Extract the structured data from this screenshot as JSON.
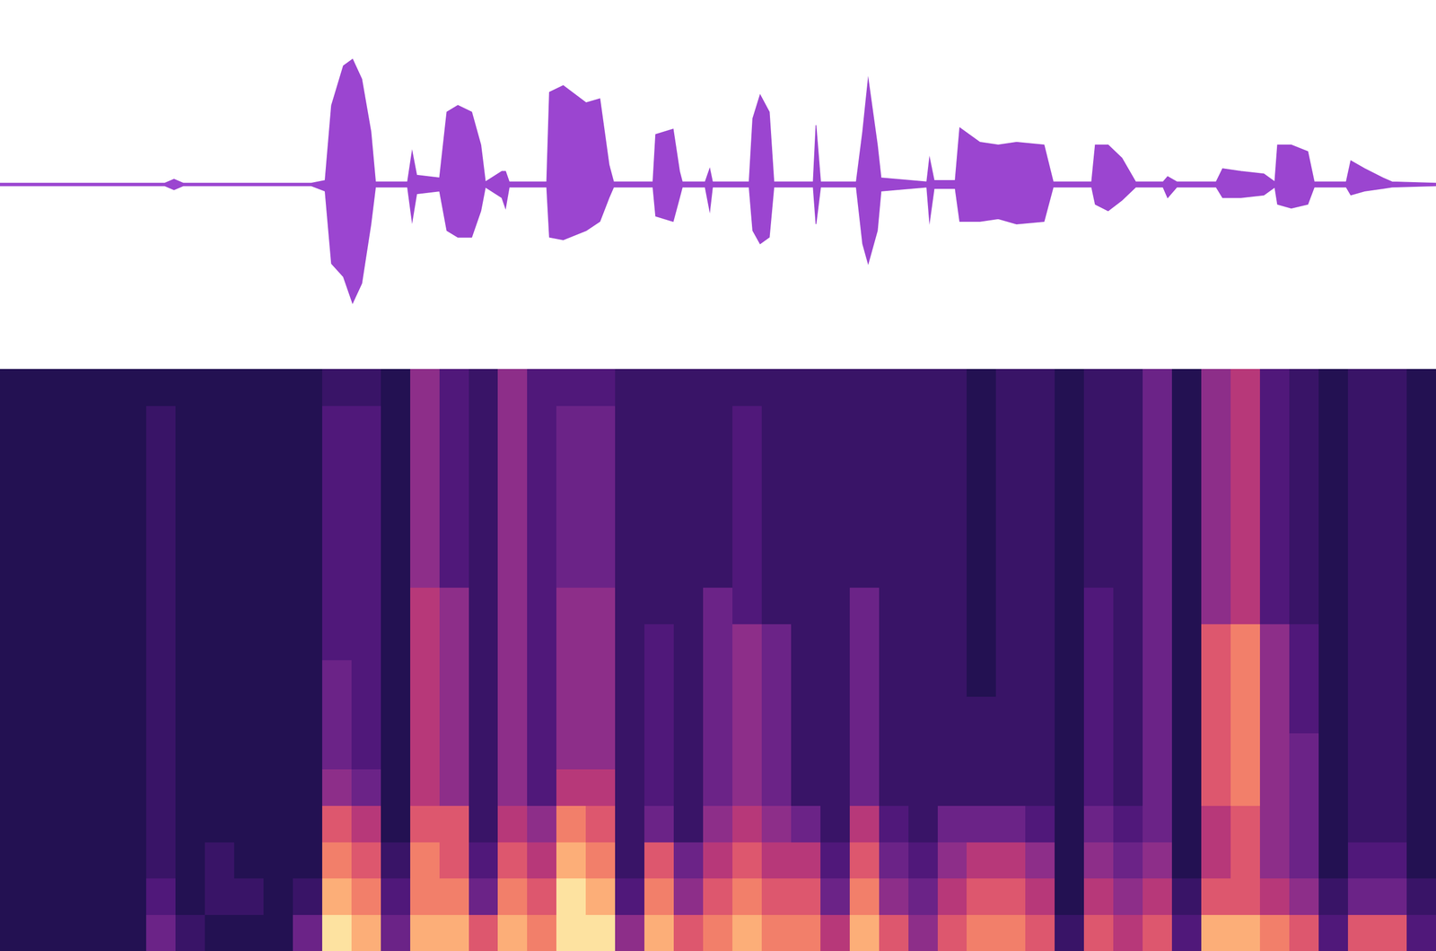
{
  "chart_data": [
    {
      "type": "area",
      "x": [
        0,
        180,
        190,
        200,
        340,
        355,
        362,
        375,
        385,
        395,
        405,
        410,
        445,
        450,
        455,
        480,
        488,
        500,
        515,
        525,
        530,
        548,
        552,
        556,
        597,
        600,
        615,
        640,
        655,
        665,
        670,
        713,
        716,
        735,
        742,
        745,
        770,
        775,
        778,
        818,
        822,
        830,
        840,
        845,
        888,
        891,
        896,
        935,
        942,
        948,
        958,
        962,
        1012,
        1015,
        1020,
        1043,
        1048,
        1070,
        1090,
        1110,
        1140,
        1150,
        1192,
        1196,
        1210,
        1225,
        1240,
        1270,
        1275,
        1285,
        1328,
        1335,
        1355,
        1380,
        1392,
        1395,
        1410,
        1428,
        1435,
        1470,
        1475,
        1490,
        1510,
        1520,
        1568
      ],
      "series": [
        {
          "color": "#9b45d0",
          "values": [
            0.01,
            0.01,
            0.04,
            0.01,
            0.01,
            0.03,
            0.6,
            0.9,
            0.95,
            0.8,
            0.4,
            0.02,
            0.02,
            0.25,
            0.07,
            0.05,
            0.55,
            0.6,
            0.55,
            0.3,
            0.02,
            0.1,
            0.1,
            0.02,
            0.02,
            0.7,
            0.75,
            0.62,
            0.65,
            0.15,
            0.02,
            0.02,
            0.38,
            0.42,
            0.1,
            0.02,
            0.02,
            0.12,
            0.02,
            0.02,
            0.5,
            0.68,
            0.55,
            0.02,
            0.02,
            0.45,
            0.02,
            0.02,
            0.4,
            0.8,
            0.3,
            0.05,
            0.02,
            0.2,
            0.03,
            0.03,
            0.43,
            0.32,
            0.3,
            0.32,
            0.3,
            0.02,
            0.02,
            0.3,
            0.3,
            0.2,
            0.02,
            0.02,
            0.06,
            0.02,
            0.02,
            0.12,
            0.1,
            0.08,
            0.02,
            0.3,
            0.3,
            0.25,
            0.02,
            0.02,
            0.18,
            0.12,
            0.05,
            0.02,
            0.01
          ]
        },
        {
          "color": "#9b45d0",
          "values": [
            -0.01,
            -0.01,
            -0.04,
            -0.01,
            -0.01,
            -0.05,
            -0.6,
            -0.7,
            -0.9,
            -0.75,
            -0.3,
            -0.02,
            -0.02,
            -0.28,
            -0.07,
            -0.05,
            -0.35,
            -0.4,
            -0.4,
            -0.2,
            -0.02,
            -0.1,
            -0.18,
            -0.02,
            -0.02,
            -0.4,
            -0.42,
            -0.35,
            -0.28,
            -0.1,
            -0.02,
            -0.02,
            -0.24,
            -0.28,
            -0.1,
            -0.02,
            -0.02,
            -0.2,
            -0.02,
            -0.02,
            -0.35,
            -0.45,
            -0.4,
            -0.02,
            -0.02,
            -0.3,
            -0.02,
            -0.02,
            -0.45,
            -0.6,
            -0.35,
            -0.05,
            -0.02,
            -0.28,
            -0.03,
            -0.03,
            -0.28,
            -0.28,
            -0.26,
            -0.3,
            -0.28,
            -0.02,
            -0.02,
            -0.15,
            -0.2,
            -0.12,
            -0.02,
            -0.02,
            -0.1,
            -0.02,
            -0.02,
            -0.1,
            -0.1,
            -0.08,
            -0.02,
            -0.15,
            -0.18,
            -0.15,
            -0.02,
            -0.02,
            -0.08,
            -0.05,
            -0.03,
            -0.02,
            -0.01
          ]
        }
      ],
      "xlim": [
        0,
        1568
      ],
      "ylim": [
        -1.4,
        1.4
      ],
      "tick_labels": false,
      "grid": false
    },
    {
      "type": "heatmap",
      "xlim": [
        0,
        1568
      ],
      "ylim": [
        0,
        8
      ],
      "color_range": [
        0,
        9
      ],
      "tick_labels": false,
      "grid": false,
      "cells": [
        [
          0,
          0,
          0,
          0,
          0,
          0,
          0,
          0,
          0,
          0,
          0,
          0,
          0,
          0,
          0,
          0
        ],
        [
          0,
          0,
          0,
          0,
          0,
          0,
          0,
          0,
          0,
          0,
          0,
          0,
          0,
          0,
          0,
          0
        ],
        [
          0,
          0,
          0,
          0,
          0,
          0,
          0,
          0,
          0,
          0,
          0,
          0,
          0,
          0,
          0,
          0
        ],
        [
          0,
          0,
          0,
          0,
          0,
          0,
          0,
          0,
          0,
          0,
          0,
          0,
          0,
          0,
          0,
          0
        ],
        [
          0,
          0,
          0,
          0,
          0,
          0,
          0,
          0,
          0,
          0,
          0,
          0,
          0,
          0,
          0,
          0
        ],
        [
          3,
          2,
          1,
          1,
          1,
          1,
          1,
          1,
          1,
          1,
          1,
          1,
          1,
          1,
          1,
          0
        ],
        [
          1,
          0,
          0,
          0,
          0,
          0,
          0,
          0,
          0,
          0,
          0,
          0,
          0,
          0,
          0,
          0
        ],
        [
          0,
          1,
          1,
          0,
          0,
          0,
          0,
          0,
          0,
          0,
          0,
          0,
          0,
          0,
          0,
          0
        ],
        [
          0,
          1,
          0,
          0,
          0,
          0,
          0,
          0,
          0,
          0,
          0,
          0,
          0,
          0,
          0,
          0
        ],
        [
          0,
          0,
          0,
          0,
          0,
          0,
          0,
          0,
          0,
          0,
          0,
          0,
          0,
          0,
          0,
          0
        ],
        [
          3,
          1,
          0,
          0,
          0,
          0,
          0,
          0,
          0,
          0,
          0,
          0,
          0,
          0,
          0,
          0
        ],
        [
          9,
          8,
          7,
          6,
          4,
          3,
          3,
          3,
          2,
          2,
          2,
          2,
          2,
          2,
          2,
          1
        ],
        [
          8,
          7,
          6,
          5,
          3,
          2,
          2,
          2,
          2,
          2,
          2,
          2,
          2,
          2,
          2,
          1
        ],
        [
          3,
          2,
          1,
          0,
          0,
          0,
          0,
          0,
          0,
          0,
          0,
          0,
          0,
          0,
          0,
          0
        ],
        [
          8,
          7,
          7,
          6,
          5,
          5,
          5,
          5,
          5,
          5,
          4,
          4,
          4,
          4,
          4,
          4
        ],
        [
          8,
          7,
          6,
          6,
          4,
          4,
          4,
          4,
          4,
          4,
          2,
          2,
          2,
          2,
          2,
          2
        ],
        [
          6,
          3,
          2,
          1,
          1,
          1,
          1,
          1,
          1,
          1,
          1,
          1,
          1,
          1,
          1,
          1
        ],
        [
          8,
          7,
          6,
          5,
          4,
          4,
          4,
          4,
          4,
          4,
          4,
          4,
          4,
          4,
          4,
          4
        ],
        [
          7,
          6,
          5,
          4,
          2,
          2,
          2,
          2,
          2,
          2,
          2,
          2,
          2,
          2,
          2,
          2
        ],
        [
          9,
          9,
          8,
          7,
          5,
          4,
          4,
          4,
          4,
          4,
          3,
          3,
          3,
          3,
          3,
          2
        ],
        [
          9,
          8,
          7,
          6,
          5,
          4,
          4,
          4,
          4,
          4,
          3,
          3,
          3,
          3,
          3,
          2
        ],
        [
          4,
          2,
          1,
          1,
          1,
          1,
          1,
          1,
          1,
          1,
          1,
          1,
          1,
          1,
          1,
          1
        ],
        [
          8,
          7,
          6,
          3,
          2,
          2,
          2,
          2,
          2,
          1,
          1,
          1,
          1,
          1,
          1,
          1
        ],
        [
          6,
          4,
          3,
          1,
          1,
          1,
          1,
          1,
          1,
          1,
          1,
          1,
          1,
          1,
          1,
          1
        ],
        [
          7,
          6,
          5,
          4,
          3,
          3,
          3,
          3,
          3,
          3,
          1,
          1,
          1,
          1,
          1,
          1
        ],
        [
          8,
          7,
          6,
          5,
          4,
          4,
          4,
          4,
          4,
          2,
          2,
          2,
          2,
          2,
          2,
          1
        ],
        [
          7,
          6,
          5,
          4,
          3,
          3,
          3,
          3,
          3,
          1,
          1,
          1,
          1,
          1,
          1,
          1
        ],
        [
          7,
          6,
          5,
          3,
          1,
          1,
          1,
          1,
          1,
          1,
          1,
          1,
          1,
          1,
          1,
          1
        ],
        [
          5,
          3,
          2,
          1,
          1,
          1,
          1,
          1,
          1,
          1,
          1,
          1,
          1,
          1,
          1,
          1
        ],
        [
          8,
          7,
          6,
          5,
          3,
          3,
          3,
          3,
          3,
          3,
          1,
          1,
          1,
          1,
          1,
          1
        ],
        [
          6,
          4,
          3,
          2,
          1,
          1,
          1,
          1,
          1,
          1,
          1,
          1,
          1,
          1,
          1,
          1
        ],
        [
          4,
          3,
          2,
          1,
          1,
          1,
          1,
          1,
          1,
          1,
          1,
          1,
          1,
          1,
          1,
          1
        ],
        [
          6,
          5,
          4,
          3,
          1,
          1,
          1,
          1,
          1,
          1,
          1,
          1,
          1,
          1,
          1,
          1
        ],
        [
          7,
          6,
          5,
          3,
          1,
          1,
          1,
          0,
          0,
          0,
          0,
          0,
          0,
          0,
          0,
          0
        ],
        [
          7,
          6,
          5,
          3,
          1,
          1,
          1,
          1,
          1,
          1,
          1,
          1,
          1,
          1,
          1,
          1
        ],
        [
          6,
          5,
          4,
          2,
          1,
          1,
          1,
          1,
          1,
          1,
          1,
          1,
          1,
          1,
          1,
          1
        ],
        [
          1,
          0,
          0,
          0,
          0,
          0,
          0,
          0,
          0,
          0,
          0,
          0,
          0,
          0,
          0,
          0
        ],
        [
          6,
          5,
          4,
          3,
          2,
          2,
          2,
          2,
          2,
          2,
          1,
          1,
          1,
          1,
          1,
          1
        ],
        [
          5,
          4,
          3,
          2,
          1,
          1,
          1,
          1,
          1,
          1,
          1,
          1,
          1,
          1,
          1,
          1
        ],
        [
          6,
          5,
          4,
          3,
          3,
          3,
          3,
          3,
          3,
          3,
          3,
          3,
          3,
          3,
          3,
          3
        ],
        [
          2,
          1,
          0,
          0,
          0,
          0,
          0,
          0,
          0,
          0,
          0,
          0,
          0,
          0,
          0,
          0
        ],
        [
          8,
          6,
          5,
          5,
          6,
          6,
          6,
          6,
          6,
          4,
          4,
          4,
          4,
          4,
          4,
          4
        ],
        [
          8,
          6,
          6,
          6,
          7,
          7,
          7,
          7,
          7,
          5,
          5,
          5,
          5,
          5,
          5,
          5
        ],
        [
          7,
          5,
          4,
          4,
          4,
          4,
          4,
          4,
          4,
          2,
          2,
          2,
          2,
          2,
          2,
          2
        ],
        [
          6,
          4,
          3,
          3,
          3,
          3,
          2,
          2,
          2,
          1,
          1,
          1,
          1,
          1,
          1,
          1
        ],
        [
          2,
          1,
          0,
          0,
          0,
          0,
          0,
          0,
          0,
          0,
          0,
          0,
          0,
          0,
          0,
          0
        ],
        [
          6,
          3,
          2,
          1,
          1,
          1,
          1,
          1,
          1,
          1,
          1,
          1,
          1,
          1,
          1,
          1
        ],
        [
          6,
          3,
          2,
          1,
          1,
          1,
          1,
          1,
          1,
          1,
          1,
          1,
          1,
          1,
          1,
          1
        ],
        [
          2,
          1,
          0,
          0,
          0,
          0,
          0,
          0,
          0,
          0,
          0,
          0,
          0,
          0,
          0,
          0
        ]
      ]
    }
  ]
}
